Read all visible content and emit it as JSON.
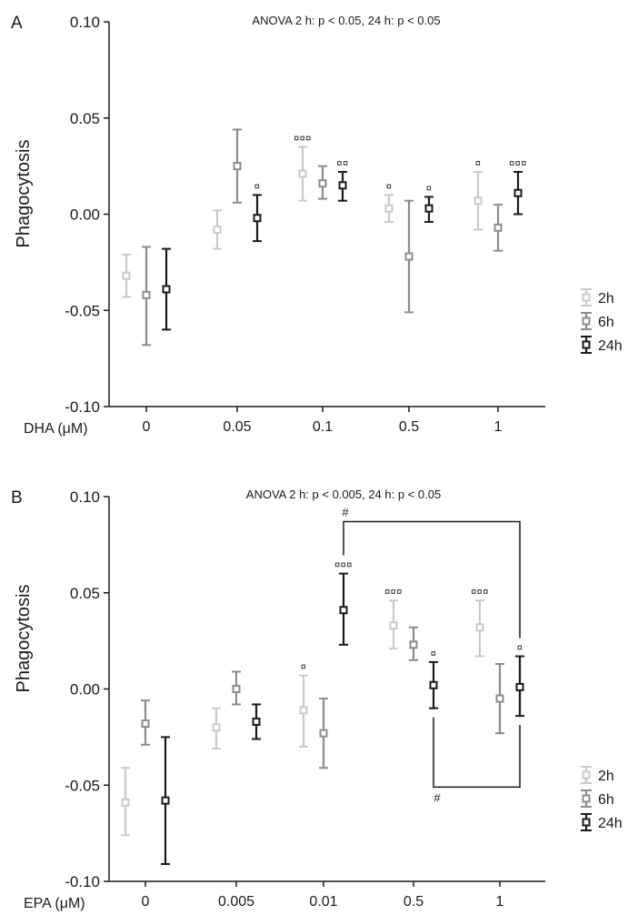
{
  "legend": {
    "entries": [
      {
        "label": "2h",
        "color": "#c9c9c9"
      },
      {
        "label": "6h",
        "color": "#8c8c8c"
      },
      {
        "label": "24h",
        "color": "#1a1a1a"
      }
    ],
    "placement": "right"
  },
  "chart_data": [
    {
      "type": "scatter",
      "panel": "A",
      "title": "ANOVA 2 h: p < 0.05, 24 h: p < 0.05",
      "ylabel": "Phagocytosis",
      "xlabel": "DHA (μM)",
      "ylim": [
        -0.1,
        0.1
      ],
      "yticks": [
        "0.10",
        "0.05",
        "0.00",
        "-0.05",
        "-0.10"
      ],
      "categories": [
        "0",
        "0.05",
        "0.1",
        "0.5",
        "1"
      ],
      "series": [
        {
          "name": "2h",
          "values": [
            -0.032,
            -0.008,
            0.021,
            0.003,
            0.007
          ],
          "lower": [
            -0.043,
            -0.018,
            0.007,
            -0.004,
            -0.008
          ],
          "upper": [
            -0.021,
            0.002,
            0.035,
            0.01,
            0.022
          ],
          "annotations": [
            "",
            "",
            "¤¤¤",
            "¤",
            "¤"
          ]
        },
        {
          "name": "6h",
          "values": [
            -0.042,
            0.025,
            0.016,
            -0.022,
            -0.007
          ],
          "lower": [
            -0.068,
            0.006,
            0.008,
            -0.051,
            -0.019
          ],
          "upper": [
            -0.017,
            0.044,
            0.025,
            0.007,
            0.005
          ],
          "annotations": [
            "",
            "",
            "",
            "",
            ""
          ]
        },
        {
          "name": "24h",
          "values": [
            -0.039,
            -0.002,
            0.015,
            0.003,
            0.011
          ],
          "lower": [
            -0.06,
            -0.014,
            0.007,
            -0.004,
            0.0
          ],
          "upper": [
            -0.018,
            0.01,
            0.022,
            0.009,
            0.022
          ],
          "annotations": [
            "",
            "¤",
            "¤¤",
            "¤",
            "¤¤¤"
          ]
        }
      ],
      "brackets": []
    },
    {
      "type": "scatter",
      "panel": "B",
      "title": "ANOVA 2 h: p < 0.005, 24 h: p < 0.05",
      "ylabel": "Phagocytosis",
      "xlabel": "EPA (μM)",
      "ylim": [
        -0.1,
        0.1
      ],
      "yticks": [
        "0.10",
        "0.05",
        "0.00",
        "-0.05",
        "-0.10"
      ],
      "categories": [
        "0",
        "0.005",
        "0.01",
        "0.5",
        "1"
      ],
      "series": [
        {
          "name": "2h",
          "values": [
            -0.059,
            -0.02,
            -0.011,
            0.033,
            0.032
          ],
          "lower": [
            -0.076,
            -0.031,
            -0.03,
            0.021,
            0.017
          ],
          "upper": [
            -0.041,
            -0.01,
            0.007,
            0.046,
            0.046
          ],
          "annotations": [
            "",
            "",
            "¤",
            "¤¤¤",
            "¤¤¤"
          ]
        },
        {
          "name": "6h",
          "values": [
            -0.018,
            0.0,
            -0.023,
            0.023,
            -0.005
          ],
          "lower": [
            -0.029,
            -0.008,
            -0.041,
            0.015,
            -0.023
          ],
          "upper": [
            -0.006,
            0.009,
            -0.005,
            0.032,
            0.013
          ],
          "annotations": [
            "",
            "",
            "",
            "",
            ""
          ]
        },
        {
          "name": "24h",
          "values": [
            -0.058,
            -0.017,
            0.041,
            0.002,
            0.001
          ],
          "lower": [
            -0.091,
            -0.026,
            0.023,
            -0.01,
            -0.014
          ],
          "upper": [
            -0.025,
            -0.008,
            0.06,
            0.014,
            0.017
          ],
          "annotations": [
            "",
            "",
            "¤¤¤",
            "¤",
            "¤"
          ]
        }
      ],
      "brackets": [
        {
          "from_category": "0.01",
          "to_category": "1",
          "series": "24h",
          "side": "top",
          "label": "#"
        },
        {
          "from_category": "0.5",
          "to_category": "1",
          "series": "24h",
          "side": "bottom",
          "label": "#"
        }
      ]
    }
  ]
}
